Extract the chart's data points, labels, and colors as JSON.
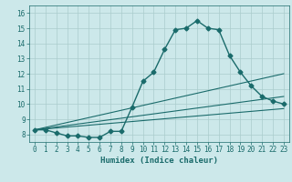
{
  "title": "",
  "xlabel": "Humidex (Indice chaleur)",
  "bg_color": "#cce8ea",
  "line_color": "#1a6b6b",
  "grid_color": "#aacccc",
  "xlim": [
    -0.5,
    23.5
  ],
  "ylim": [
    7.5,
    16.5
  ],
  "yticks": [
    8,
    9,
    10,
    11,
    12,
    13,
    14,
    15,
    16
  ],
  "xticks": [
    0,
    1,
    2,
    3,
    4,
    5,
    6,
    7,
    8,
    9,
    10,
    11,
    12,
    13,
    14,
    15,
    16,
    17,
    18,
    19,
    20,
    21,
    22,
    23
  ],
  "main_series": {
    "x": [
      0,
      1,
      2,
      3,
      4,
      5,
      6,
      7,
      8,
      9,
      10,
      11,
      12,
      13,
      14,
      15,
      16,
      17,
      18,
      19,
      20,
      21,
      22,
      23
    ],
    "y": [
      8.3,
      8.3,
      8.1,
      7.9,
      7.9,
      7.8,
      7.8,
      8.2,
      8.2,
      9.8,
      11.5,
      12.1,
      13.6,
      14.9,
      15.0,
      15.5,
      15.0,
      14.9,
      13.2,
      12.1,
      11.2,
      10.5,
      10.2,
      10.0
    ]
  },
  "ref_lines": [
    {
      "x": [
        0,
        23
      ],
      "y": [
        8.3,
        12.0
      ]
    },
    {
      "x": [
        0,
        23
      ],
      "y": [
        8.3,
        10.5
      ]
    },
    {
      "x": [
        0,
        23
      ],
      "y": [
        8.3,
        9.7
      ]
    }
  ],
  "marker": "D",
  "markersize": 2.5,
  "linewidth": 1.0,
  "ref_linewidth": 0.8,
  "xlabel_fontsize": 6.5,
  "tick_fontsize": 5.5
}
